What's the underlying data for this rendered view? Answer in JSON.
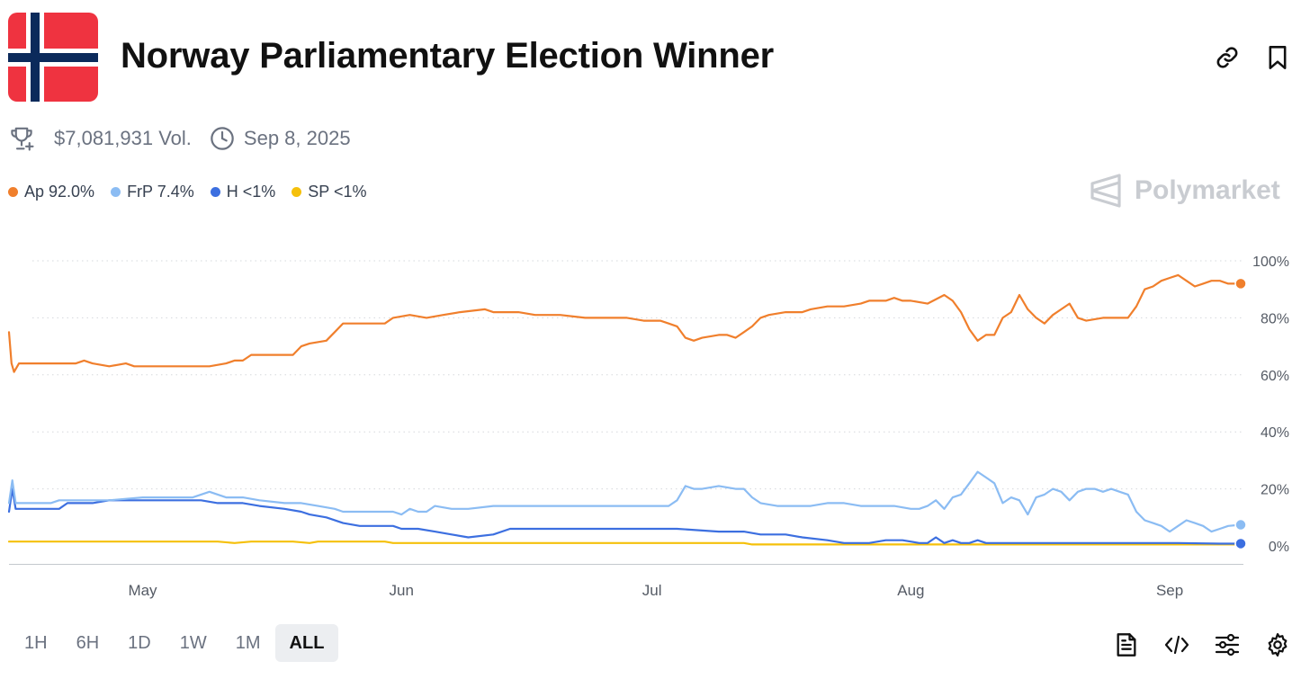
{
  "header": {
    "title": "Norway Parliamentary Election Winner",
    "flag_colors": {
      "red": "#ef3340",
      "white": "#ffffff",
      "blue": "#0b2a5b"
    }
  },
  "meta": {
    "volume": "$7,081,931 Vol.",
    "end_date": "Sep 8, 2025"
  },
  "legend": [
    {
      "label": "Ap 92.0%",
      "color": "#f07f2c"
    },
    {
      "label": "FrP 7.4%",
      "color": "#8bbcf3"
    },
    {
      "label": "H <1%",
      "color": "#3c6fe0"
    },
    {
      "label": "SP <1%",
      "color": "#f5c00b"
    }
  ],
  "brand": {
    "name": "Polymarket"
  },
  "time_ranges": [
    {
      "label": "1H",
      "active": false
    },
    {
      "label": "6H",
      "active": false
    },
    {
      "label": "1D",
      "active": false
    },
    {
      "label": "1W",
      "active": false
    },
    {
      "label": "1M",
      "active": false
    },
    {
      "label": "ALL",
      "active": true
    }
  ],
  "chart_data": {
    "type": "line",
    "x_unit": "days since Apr 14, 2025",
    "xlim": [
      0,
      147.5
    ],
    "ylim": [
      0,
      100
    ],
    "grid": true,
    "x_tick_labels": [
      {
        "label": "May",
        "x": 16
      },
      {
        "label": "Jun",
        "x": 47
      },
      {
        "label": "Jul",
        "x": 77
      },
      {
        "label": "Aug",
        "x": 108
      },
      {
        "label": "Sep",
        "x": 139
      }
    ],
    "y_ticks": [
      0,
      20,
      40,
      60,
      80,
      100
    ],
    "y_tick_labels": [
      "0%",
      "20%",
      "40%",
      "60%",
      "80%",
      "100%"
    ],
    "series": [
      {
        "name": "Ap",
        "color": "#f07f2c",
        "points": [
          [
            0,
            75
          ],
          [
            0.3,
            64
          ],
          [
            0.6,
            61
          ],
          [
            1.2,
            64
          ],
          [
            8,
            64
          ],
          [
            9,
            65
          ],
          [
            10,
            64
          ],
          [
            12,
            63
          ],
          [
            14,
            64
          ],
          [
            15,
            63
          ],
          [
            18,
            63
          ],
          [
            20,
            63
          ],
          [
            22,
            63
          ],
          [
            24,
            63
          ],
          [
            26,
            64
          ],
          [
            27,
            65
          ],
          [
            28,
            65
          ],
          [
            29,
            67
          ],
          [
            30,
            67
          ],
          [
            33,
            67
          ],
          [
            34,
            67
          ],
          [
            35,
            70
          ],
          [
            36,
            71
          ],
          [
            38,
            72
          ],
          [
            39,
            75
          ],
          [
            40,
            78
          ],
          [
            43,
            78
          ],
          [
            45,
            78
          ],
          [
            46,
            80
          ],
          [
            48,
            81
          ],
          [
            50,
            80
          ],
          [
            52,
            81
          ],
          [
            54,
            82
          ],
          [
            57,
            83
          ],
          [
            58,
            82
          ],
          [
            61,
            82
          ],
          [
            63,
            81
          ],
          [
            66,
            81
          ],
          [
            69,
            80
          ],
          [
            72,
            80
          ],
          [
            74,
            80
          ],
          [
            76,
            79
          ],
          [
            78,
            79
          ],
          [
            79,
            78
          ],
          [
            80,
            77
          ],
          [
            81,
            73
          ],
          [
            82,
            72
          ],
          [
            83,
            73
          ],
          [
            85,
            74
          ],
          [
            86,
            74
          ],
          [
            87,
            73
          ],
          [
            88,
            75
          ],
          [
            89,
            77
          ],
          [
            90,
            80
          ],
          [
            91,
            81
          ],
          [
            93,
            82
          ],
          [
            95,
            82
          ],
          [
            96,
            83
          ],
          [
            98,
            84
          ],
          [
            100,
            84
          ],
          [
            102,
            85
          ],
          [
            103,
            86
          ],
          [
            105,
            86
          ],
          [
            106,
            87
          ],
          [
            107,
            86
          ],
          [
            108,
            86
          ],
          [
            110,
            85
          ],
          [
            112,
            88
          ],
          [
            113,
            86
          ],
          [
            114,
            82
          ],
          [
            115,
            76
          ],
          [
            116,
            72
          ],
          [
            117,
            74
          ],
          [
            118,
            74
          ],
          [
            119,
            80
          ],
          [
            120,
            82
          ],
          [
            121,
            88
          ],
          [
            122,
            83
          ],
          [
            123,
            80
          ],
          [
            124,
            78
          ],
          [
            125,
            81
          ],
          [
            126,
            83
          ],
          [
            127,
            85
          ],
          [
            128,
            80
          ],
          [
            129,
            79
          ],
          [
            131,
            80
          ],
          [
            133,
            80
          ],
          [
            134,
            80
          ],
          [
            135,
            84
          ],
          [
            136,
            90
          ],
          [
            137,
            91
          ],
          [
            138,
            93
          ],
          [
            139,
            94
          ],
          [
            140,
            95
          ],
          [
            141,
            93
          ],
          [
            142,
            91
          ],
          [
            143,
            92
          ],
          [
            144,
            93
          ],
          [
            145,
            93
          ],
          [
            146,
            92
          ],
          [
            147.5,
            92
          ]
        ]
      },
      {
        "name": "FrP",
        "color": "#8bbcf3",
        "points": [
          [
            0,
            15
          ],
          [
            0.4,
            23
          ],
          [
            0.8,
            15
          ],
          [
            5,
            15
          ],
          [
            6,
            16
          ],
          [
            10,
            16
          ],
          [
            12,
            16
          ],
          [
            16,
            17
          ],
          [
            20,
            17
          ],
          [
            22,
            17
          ],
          [
            23,
            18
          ],
          [
            24,
            19
          ],
          [
            25,
            18
          ],
          [
            26,
            17
          ],
          [
            28,
            17
          ],
          [
            30,
            16
          ],
          [
            33,
            15
          ],
          [
            35,
            15
          ],
          [
            37,
            14
          ],
          [
            39,
            13
          ],
          [
            40,
            12
          ],
          [
            42,
            12
          ],
          [
            44,
            12
          ],
          [
            46,
            12
          ],
          [
            47,
            11
          ],
          [
            48,
            13
          ],
          [
            49,
            12
          ],
          [
            50,
            12
          ],
          [
            51,
            14
          ],
          [
            53,
            13
          ],
          [
            55,
            13
          ],
          [
            58,
            14
          ],
          [
            60,
            14
          ],
          [
            65,
            14
          ],
          [
            70,
            14
          ],
          [
            75,
            14
          ],
          [
            79,
            14
          ],
          [
            80,
            16
          ],
          [
            81,
            21
          ],
          [
            82,
            20
          ],
          [
            83,
            20
          ],
          [
            85,
            21
          ],
          [
            87,
            20
          ],
          [
            88,
            20
          ],
          [
            89,
            17
          ],
          [
            90,
            15
          ],
          [
            92,
            14
          ],
          [
            94,
            14
          ],
          [
            96,
            14
          ],
          [
            98,
            15
          ],
          [
            100,
            15
          ],
          [
            102,
            14
          ],
          [
            104,
            14
          ],
          [
            106,
            14
          ],
          [
            108,
            13
          ],
          [
            109,
            13
          ],
          [
            110,
            14
          ],
          [
            111,
            16
          ],
          [
            112,
            13
          ],
          [
            113,
            17
          ],
          [
            114,
            18
          ],
          [
            115,
            22
          ],
          [
            116,
            26
          ],
          [
            117,
            24
          ],
          [
            118,
            22
          ],
          [
            119,
            15
          ],
          [
            120,
            17
          ],
          [
            121,
            16
          ],
          [
            122,
            11
          ],
          [
            123,
            17
          ],
          [
            124,
            18
          ],
          [
            125,
            20
          ],
          [
            126,
            19
          ],
          [
            127,
            16
          ],
          [
            128,
            19
          ],
          [
            129,
            20
          ],
          [
            130,
            20
          ],
          [
            131,
            19
          ],
          [
            132,
            20
          ],
          [
            133,
            19
          ],
          [
            134,
            18
          ],
          [
            135,
            12
          ],
          [
            136,
            9
          ],
          [
            137,
            8
          ],
          [
            138,
            7
          ],
          [
            139,
            5
          ],
          [
            140,
            7
          ],
          [
            141,
            9
          ],
          [
            142,
            8
          ],
          [
            143,
            7
          ],
          [
            144,
            5
          ],
          [
            145,
            6
          ],
          [
            146,
            7
          ],
          [
            147.5,
            7.4
          ]
        ]
      },
      {
        "name": "H",
        "color": "#3c6fe0",
        "points": [
          [
            0,
            12
          ],
          [
            0.4,
            20
          ],
          [
            0.8,
            13
          ],
          [
            6,
            13
          ],
          [
            7,
            15
          ],
          [
            10,
            15
          ],
          [
            12,
            16
          ],
          [
            16,
            16
          ],
          [
            20,
            16
          ],
          [
            22,
            16
          ],
          [
            23,
            16
          ],
          [
            25,
            15
          ],
          [
            28,
            15
          ],
          [
            30,
            14
          ],
          [
            33,
            13
          ],
          [
            35,
            12
          ],
          [
            36,
            11
          ],
          [
            38,
            10
          ],
          [
            40,
            8
          ],
          [
            42,
            7
          ],
          [
            44,
            7
          ],
          [
            46,
            7
          ],
          [
            47,
            6
          ],
          [
            49,
            6
          ],
          [
            51,
            5
          ],
          [
            53,
            4
          ],
          [
            55,
            3
          ],
          [
            58,
            4
          ],
          [
            60,
            6
          ],
          [
            62,
            6
          ],
          [
            65,
            6
          ],
          [
            70,
            6
          ],
          [
            75,
            6
          ],
          [
            80,
            6
          ],
          [
            85,
            5
          ],
          [
            88,
            5
          ],
          [
            90,
            4
          ],
          [
            93,
            4
          ],
          [
            95,
            3
          ],
          [
            98,
            2
          ],
          [
            100,
            1
          ],
          [
            103,
            1
          ],
          [
            105,
            2
          ],
          [
            107,
            2
          ],
          [
            109,
            1
          ],
          [
            110,
            1
          ],
          [
            111,
            3
          ],
          [
            112,
            1
          ],
          [
            113,
            2
          ],
          [
            114,
            1
          ],
          [
            115,
            1
          ],
          [
            116,
            2
          ],
          [
            117,
            1
          ],
          [
            120,
            1
          ],
          [
            125,
            1
          ],
          [
            130,
            1
          ],
          [
            135,
            1
          ],
          [
            140,
            1
          ],
          [
            145,
            0.8
          ],
          [
            147.5,
            0.8
          ]
        ]
      },
      {
        "name": "SP",
        "color": "#f5c00b",
        "points": [
          [
            0,
            1.5
          ],
          [
            5,
            1.5
          ],
          [
            10,
            1.5
          ],
          [
            15,
            1.5
          ],
          [
            20,
            1.5
          ],
          [
            25,
            1.5
          ],
          [
            27,
            1
          ],
          [
            29,
            1.5
          ],
          [
            34,
            1.5
          ],
          [
            36,
            1
          ],
          [
            37,
            1.5
          ],
          [
            40,
            1.5
          ],
          [
            45,
            1.5
          ],
          [
            46,
            1
          ],
          [
            50,
            1
          ],
          [
            60,
            1
          ],
          [
            70,
            1
          ],
          [
            80,
            1
          ],
          [
            88,
            1
          ],
          [
            89,
            0.5
          ],
          [
            95,
            0.5
          ],
          [
            100,
            0.5
          ],
          [
            110,
            0.5
          ],
          [
            120,
            0.5
          ],
          [
            130,
            0.5
          ],
          [
            140,
            0.5
          ],
          [
            147.5,
            0.5
          ]
        ]
      }
    ]
  }
}
